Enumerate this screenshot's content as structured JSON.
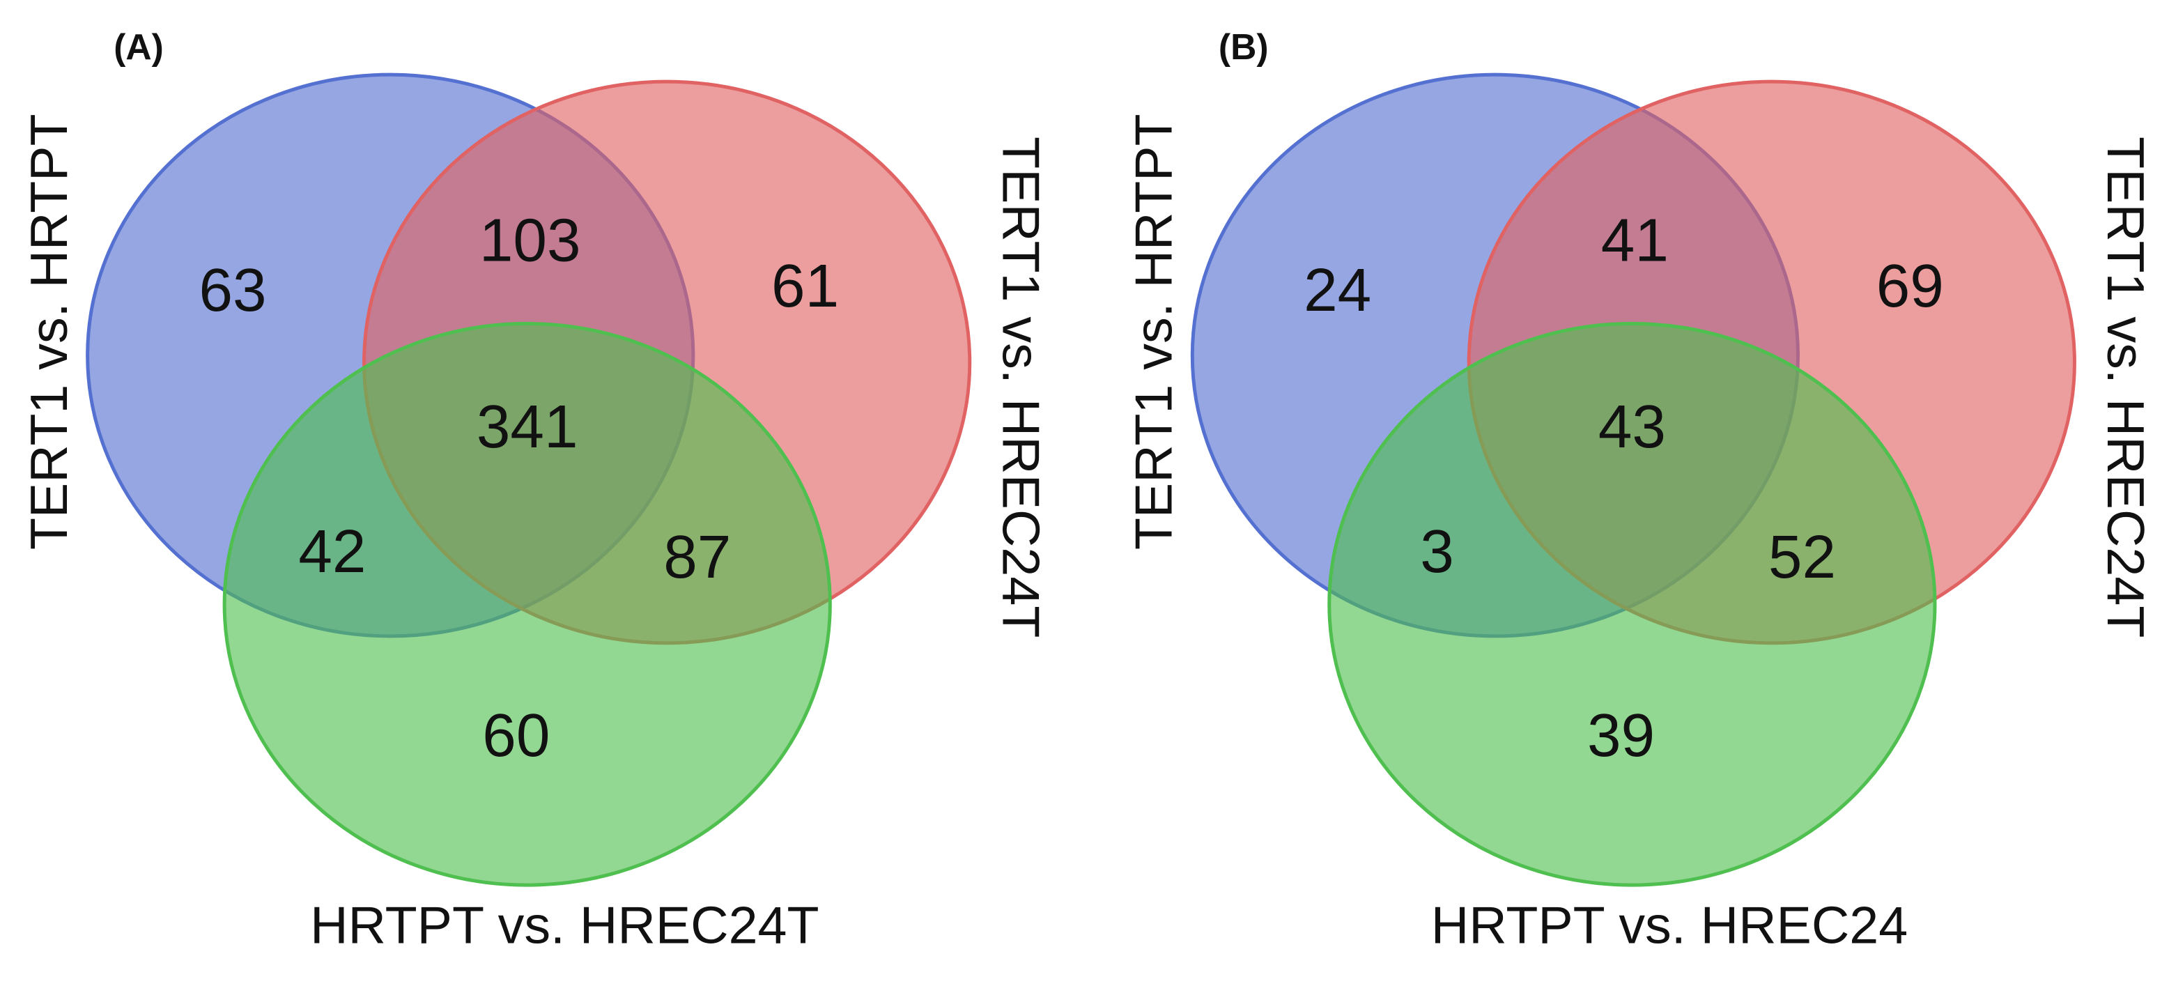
{
  "chart_data": [
    {
      "type": "venn",
      "panel_label": "(A)",
      "sets": [
        {
          "name": "TERT1 vs. HRTPT",
          "color": "#5470d0"
        },
        {
          "name": "TERT1 vs. HREC24T",
          "color": "#e06262"
        },
        {
          "name": "HRTPT vs. HREC24T",
          "color": "#4fbf4f"
        }
      ],
      "values": [
        63,
        103,
        61,
        341,
        42,
        87,
        60
      ]
    },
    {
      "type": "venn",
      "panel_label": "(B)",
      "sets": [
        {
          "name": "TERT1 vs. HRTPT",
          "color": "#5470d0"
        },
        {
          "name": "TERT1 vs. HREC24T",
          "color": "#e06262"
        },
        {
          "name": "HRTPT vs. HREC24",
          "color": "#4fbf4f"
        }
      ],
      "values": [
        24,
        41,
        69,
        43,
        3,
        52,
        39
      ]
    }
  ]
}
